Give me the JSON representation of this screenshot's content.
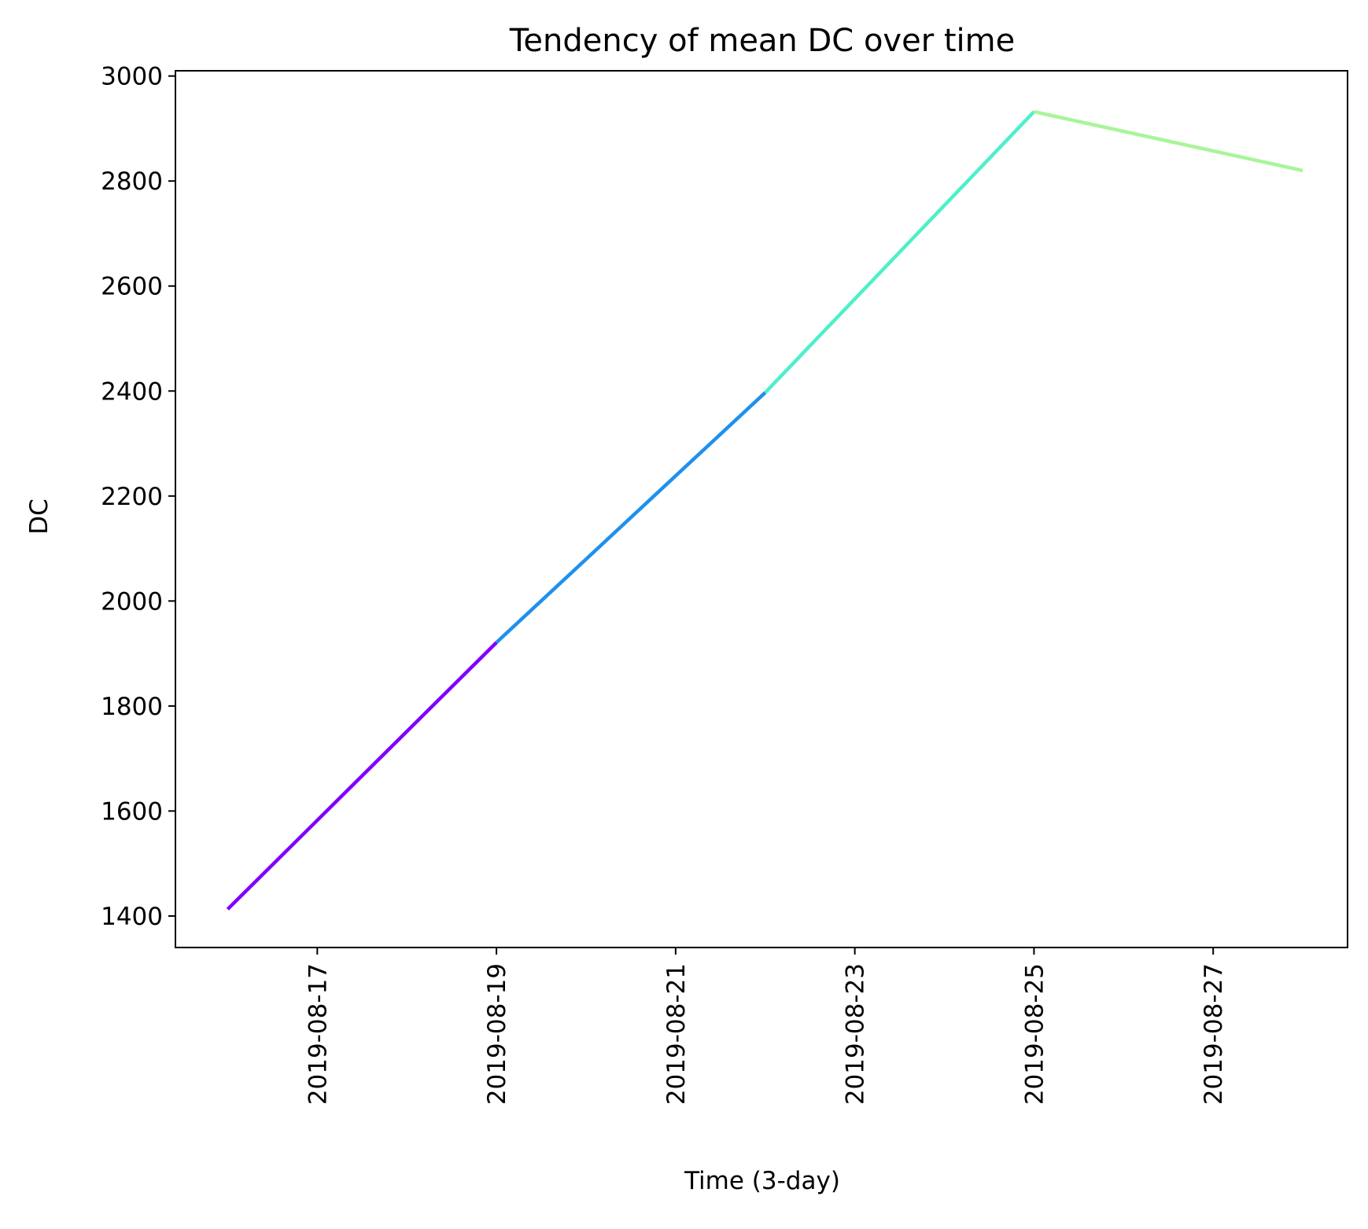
{
  "chart_data": {
    "type": "line",
    "title": "Tendency of mean DC over time",
    "xlabel": "Time (3-day)",
    "ylabel": "DC",
    "x": [
      "2019-08-16",
      "2019-08-19",
      "2019-08-22",
      "2019-08-25",
      "2019-08-28"
    ],
    "values": [
      1413,
      1921,
      2397,
      2932,
      2820
    ],
    "segment_colors": [
      "#8000ff",
      "#1e90ee",
      "#4df0c8",
      "#a8f59a"
    ],
    "x_ticks": [
      "2019-08-17",
      "2019-08-19",
      "2019-08-21",
      "2019-08-23",
      "2019-08-25",
      "2019-08-27"
    ],
    "y_ticks": [
      1400,
      1600,
      1800,
      2000,
      2200,
      2400,
      2600,
      2800,
      3000
    ],
    "xlim": [
      "2019-08-15T10:00",
      "2019-08-28T12:00"
    ],
    "ylim": [
      1340,
      3010
    ],
    "grid": false,
    "legend": "none"
  }
}
